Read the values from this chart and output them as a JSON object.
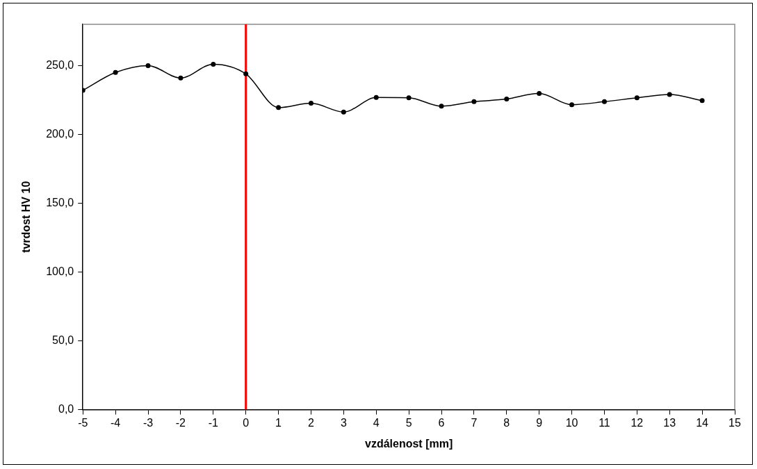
{
  "chart_data": {
    "type": "line",
    "xlabel": "vzdálenost [mm]",
    "ylabel": "tvrdost HV 10",
    "x": [
      -5,
      -4,
      -3,
      -2,
      -1,
      0,
      1,
      2,
      3,
      4,
      5,
      6,
      7,
      8,
      9,
      10,
      11,
      12,
      13,
      14
    ],
    "series": [
      {
        "color": "#000000",
        "values": [
          232,
          245,
          250,
          241,
          251,
          244,
          219.5,
          222.7,
          216.3,
          226.8,
          226.6,
          220.5,
          223.8,
          225.7,
          229.8,
          221.6,
          223.8,
          226.6,
          229,
          224.6
        ]
      }
    ],
    "xlim": [
      -5,
      15
    ],
    "xticks": [
      -5,
      -4,
      -3,
      -2,
      -1,
      0,
      1,
      2,
      3,
      4,
      5,
      6,
      7,
      8,
      9,
      10,
      11,
      12,
      13,
      14,
      15
    ],
    "ylim": [
      0,
      280
    ],
    "yticks": [
      {
        "value": 0,
        "label": "0,0"
      },
      {
        "value": 50,
        "label": "50,0"
      },
      {
        "value": 100,
        "label": "100,0"
      },
      {
        "value": 150,
        "label": "150,0"
      },
      {
        "value": 200,
        "label": "200,0"
      },
      {
        "value": 250,
        "label": "250,0"
      }
    ],
    "ref_lines": [
      {
        "axis": "x",
        "value": 0,
        "color": "#ff0000"
      }
    ],
    "grid": false,
    "legend": false,
    "marker": "circle",
    "line_style": "solid"
  }
}
